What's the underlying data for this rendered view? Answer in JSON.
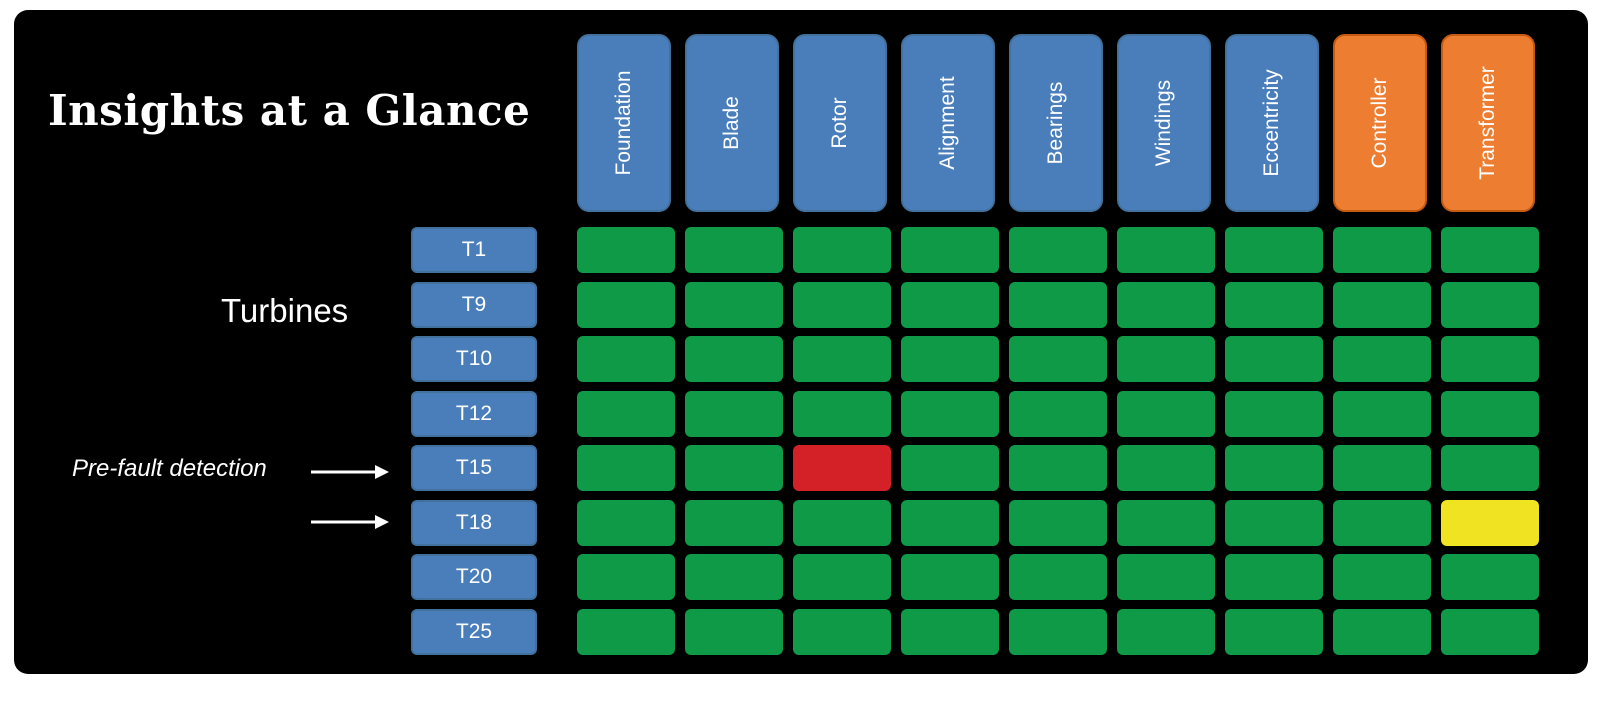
{
  "title": "Insights at a Glance",
  "row_group_label": "Turbines",
  "annotation": {
    "text": "Pre-fault detection",
    "arrow_rows": [
      "T15",
      "T18"
    ]
  },
  "columns": [
    {
      "label": "Foundation",
      "group": "blue"
    },
    {
      "label": "Blade",
      "group": "blue"
    },
    {
      "label": "Rotor",
      "group": "blue"
    },
    {
      "label": "Alignment",
      "group": "blue"
    },
    {
      "label": "Bearings",
      "group": "blue"
    },
    {
      "label": "Windings",
      "group": "blue"
    },
    {
      "label": "Eccentricity",
      "group": "blue"
    },
    {
      "label": "Controller",
      "group": "orange"
    },
    {
      "label": "Transformer",
      "group": "orange"
    }
  ],
  "rows": [
    "T1",
    "T9",
    "T10",
    "T12",
    "T15",
    "T18",
    "T20",
    "T25"
  ],
  "status_grid": [
    [
      "ok",
      "ok",
      "ok",
      "ok",
      "ok",
      "ok",
      "ok",
      "ok",
      "ok"
    ],
    [
      "ok",
      "ok",
      "ok",
      "ok",
      "ok",
      "ok",
      "ok",
      "ok",
      "ok"
    ],
    [
      "ok",
      "ok",
      "ok",
      "ok",
      "ok",
      "ok",
      "ok",
      "ok",
      "ok"
    ],
    [
      "ok",
      "ok",
      "ok",
      "ok",
      "ok",
      "ok",
      "ok",
      "ok",
      "ok"
    ],
    [
      "ok",
      "ok",
      "fault",
      "ok",
      "ok",
      "ok",
      "ok",
      "ok",
      "ok"
    ],
    [
      "ok",
      "ok",
      "ok",
      "ok",
      "ok",
      "ok",
      "ok",
      "ok",
      "warning"
    ],
    [
      "ok",
      "ok",
      "ok",
      "ok",
      "ok",
      "ok",
      "ok",
      "ok",
      "ok"
    ],
    [
      "ok",
      "ok",
      "ok",
      "ok",
      "ok",
      "ok",
      "ok",
      "ok",
      "ok"
    ]
  ],
  "colors": {
    "background": "#000000",
    "header_blue": "#4a7ebb",
    "header_orange": "#ed7d31",
    "header_orange_border": "#c55a11",
    "ok": "#0f9a48",
    "fault": "#d42127",
    "warning": "#efe322",
    "text": "#ffffff"
  }
}
